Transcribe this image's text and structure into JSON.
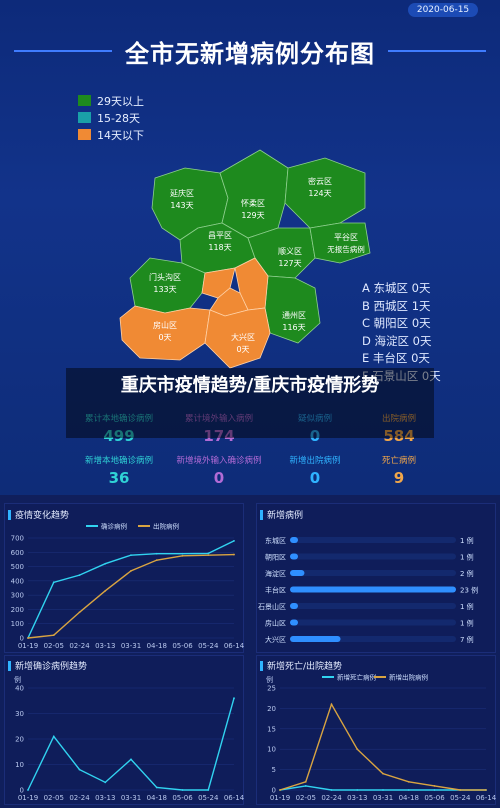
{
  "date": "2020-06-15",
  "title": "全市无新增病例分布图",
  "legend": [
    {
      "label": "29天以上",
      "color": "#1e8a1e"
    },
    {
      "label": "15-28天",
      "color": "#1aa0a8"
    },
    {
      "label": "14天以下",
      "color": "#f08a34"
    }
  ],
  "map_labels": {
    "yanqing": {
      "name": "延庆区",
      "days": "143天"
    },
    "huairou": {
      "name": "怀柔区",
      "days": "129天"
    },
    "miyun": {
      "name": "密云区",
      "days": "124天"
    },
    "changping": {
      "name": "昌平区",
      "days": "118天"
    },
    "shunyi": {
      "name": "顺义区",
      "days": "127天"
    },
    "pinggu": {
      "name": "平谷区",
      "days": "无报告病例"
    },
    "mentougou": {
      "name": "门头沟区",
      "days": "133天"
    },
    "tongzhou": {
      "name": "通州区",
      "days": "116天"
    },
    "fangshan": {
      "name": "房山区",
      "days": "0天"
    },
    "daxing": {
      "name": "大兴区",
      "days": "0天"
    }
  },
  "district_legend": [
    "A 东城区 0天",
    "B 西城区 1天",
    "C 朝阳区 0天",
    "D 海淀区 0天",
    "E 丰台区 0天",
    "F 石景山区 0天"
  ],
  "overlay_title": "重庆市疫情趋势/重庆市疫情形势",
  "stats": [
    {
      "label": "累计本地确诊病例",
      "value": "499",
      "color": "#2fd2d6"
    },
    {
      "label": "累计境外输入病例",
      "value": "174",
      "color": "#b26bd6"
    },
    {
      "label": "疑似病例",
      "value": "0",
      "color": "#2fb3ff"
    },
    {
      "label": "出院病例",
      "value": "584",
      "color": "#f0a64a"
    },
    {
      "label": "新增本地确诊病例",
      "value": "36",
      "color": "#2fd2d6"
    },
    {
      "label": "新增境外输入确诊病例",
      "value": "0",
      "color": "#b26bd6"
    },
    {
      "label": "新增出院病例",
      "value": "0",
      "color": "#2fb3ff"
    },
    {
      "label": "死亡病例",
      "value": "9",
      "color": "#f0a64a"
    }
  ],
  "panels": {
    "trend": "疫情变化趋势",
    "new_cases": "新增病例",
    "new_confirmed": "新增确诊病例趋势",
    "new_deaths": "新增死亡/出院趋势"
  },
  "chart_data": [
    {
      "type": "line",
      "title": "疫情变化趋势",
      "x": [
        "01-19",
        "02-05",
        "02-24",
        "03-13",
        "03-31",
        "04-18",
        "05-06",
        "05-24",
        "06-14"
      ],
      "ylim": [
        0,
        700
      ],
      "yticks": [
        "0",
        "100",
        "200",
        "300",
        "400",
        "500",
        "600",
        "700"
      ],
      "series": [
        {
          "name": "确诊病例",
          "color": "#31d3f0",
          "values": [
            0,
            390,
            440,
            520,
            580,
            590,
            590,
            592,
            680
          ]
        },
        {
          "name": "出院病例",
          "color": "#d9a441",
          "values": [
            0,
            20,
            180,
            330,
            470,
            545,
            575,
            580,
            584
          ]
        }
      ]
    },
    {
      "type": "bar",
      "title": "新增病例",
      "categories": [
        "东城区",
        "朝阳区",
        "海淀区",
        "丰台区",
        "石景山区",
        "房山区",
        "大兴区"
      ],
      "values": [
        1,
        1,
        2,
        23,
        1,
        1,
        7
      ],
      "value_labels": [
        "1 例",
        "1 例",
        "2 例",
        "23 例",
        "1 例",
        "1 例",
        "7 例"
      ]
    },
    {
      "type": "line",
      "title": "新增确诊病例趋势",
      "ylabel": "例",
      "x": [
        "01-19",
        "02-05",
        "02-24",
        "03-13",
        "03-31",
        "04-18",
        "05-06",
        "05-24",
        "06-14"
      ],
      "ylim": [
        0,
        40
      ],
      "yticks": [
        "0",
        "10",
        "20",
        "30",
        "40"
      ],
      "series": [
        {
          "name": "新增确诊病例",
          "color": "#31d3f0",
          "values": [
            0,
            21,
            8,
            3,
            12,
            1,
            0,
            0,
            36
          ]
        }
      ]
    },
    {
      "type": "line",
      "title": "新增死亡/出院趋势",
      "ylabel": "例",
      "x": [
        "01-19",
        "02-05",
        "02-24",
        "03-13",
        "03-31",
        "04-18",
        "05-06",
        "05-24",
        "06-14"
      ],
      "ylim": [
        0,
        25
      ],
      "yticks": [
        "0",
        "5",
        "10",
        "15",
        "20",
        "25"
      ],
      "series": [
        {
          "name": "新增死亡病例",
          "color": "#31d3f0",
          "values": [
            0,
            1,
            0,
            0,
            0,
            0,
            0,
            0,
            0
          ]
        },
        {
          "name": "新增出院病例",
          "color": "#d9a441",
          "values": [
            0,
            2,
            21,
            10,
            4,
            2,
            1,
            0,
            0
          ]
        }
      ]
    }
  ]
}
